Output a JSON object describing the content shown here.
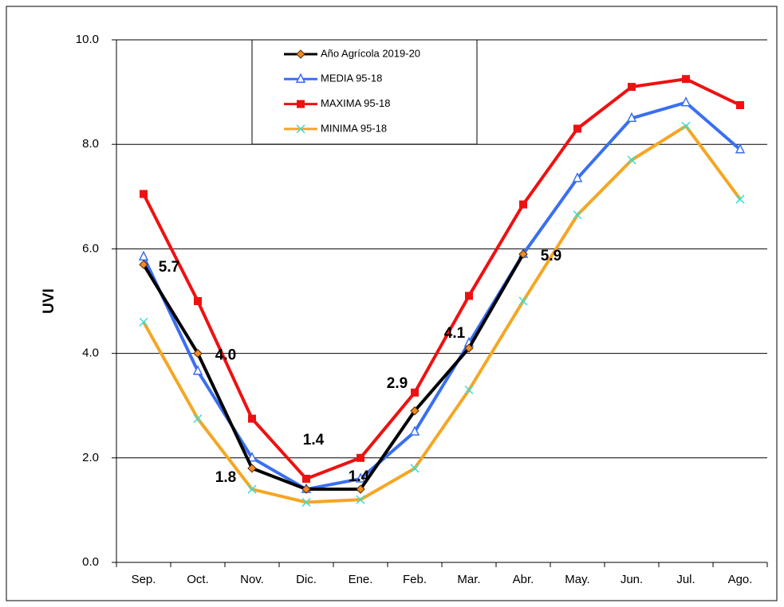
{
  "chart_data": {
    "type": "line",
    "y_label": "UVI",
    "categories": [
      "Sep.",
      "Oct.",
      "Nov.",
      "Dic.",
      "Ene.",
      "Feb.",
      "Mar.",
      "Abr.",
      "May.",
      "Jun.",
      "Jul.",
      "Ago."
    ],
    "ylim": [
      0,
      10
    ],
    "yticks": [
      {
        "value": 0,
        "label": "0.0"
      },
      {
        "value": 2,
        "label": "2.0"
      },
      {
        "value": 4,
        "label": "4.0"
      },
      {
        "value": 6,
        "label": "6.0"
      },
      {
        "value": 8,
        "label": "8.0"
      },
      {
        "value": 10,
        "label": "10.0"
      }
    ],
    "grid": true,
    "series": [
      {
        "name": "Año  Agrícola 2019-20",
        "color": "#000000",
        "marker": "diamond",
        "marker_color": "#f08a24",
        "values": [
          5.7,
          4.0,
          1.8,
          1.4,
          1.4,
          2.9,
          4.1,
          5.9,
          null,
          null,
          null,
          null
        ],
        "value_labels": [
          "5.7",
          "4.0",
          "1.8",
          "1.4",
          "1.4",
          "2.9",
          "4.1",
          "5.9",
          null,
          null,
          null,
          null
        ]
      },
      {
        "name": "MEDIA 95-18",
        "color": "#3a6ff0",
        "marker": "triangle",
        "marker_color": "#3a6ff0",
        "values": [
          5.85,
          3.66,
          2.0,
          1.4,
          1.6,
          2.5,
          4.2,
          5.9,
          7.35,
          8.5,
          8.8,
          7.9
        ]
      },
      {
        "name": "MAXIMA 95-18",
        "color": "#ee1111",
        "marker": "square",
        "marker_color": "#ee1111",
        "values": [
          7.05,
          5.0,
          2.75,
          1.6,
          2.0,
          3.25,
          5.1,
          6.85,
          8.3,
          9.1,
          9.25,
          8.75
        ]
      },
      {
        "name": "MINIMA 95-18",
        "color": "#f5a623",
        "marker": "x",
        "marker_color": "#33dddd",
        "values": [
          4.6,
          2.75,
          1.4,
          1.15,
          1.2,
          1.8,
          3.3,
          5.0,
          6.65,
          7.7,
          8.35,
          6.95
        ]
      }
    ]
  }
}
